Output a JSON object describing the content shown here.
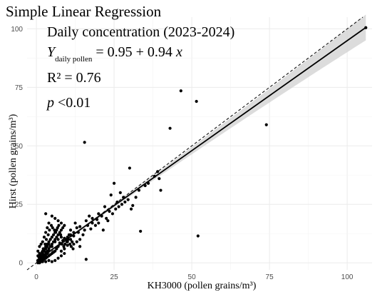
{
  "chart_data": {
    "type": "scatter",
    "title": "Simple Linear Regression",
    "subtitle": "Daily concentration (2023-2024)",
    "annotations": {
      "equation_y": "Y",
      "equation_sub": "daily pollen",
      "equation_rhs": " = 0.95 + 0.94 ",
      "equation_x": "x",
      "r2": "R² = 0.76",
      "p_symbol": "p",
      "p_value": " <0.01"
    },
    "xlabel": "KH3000 (pollen grains/m³)",
    "ylabel": "Hirst (pollen grains/m³)",
    "xlim": [
      -3,
      108
    ],
    "ylim": [
      -3,
      105
    ],
    "x_ticks": [
      0,
      25,
      50,
      75,
      100
    ],
    "y_ticks": [
      0,
      25,
      50,
      75,
      100
    ],
    "grid": true,
    "regression": {
      "intercept": 0.95,
      "slope": 0.94,
      "x_range": [
        0,
        106
      ],
      "ci_halfwidth_at_mean": 0.6,
      "ci_halfwidth_at_max": 5.5,
      "x_mean": 6
    },
    "reference_line": {
      "type": "identity",
      "style": "dashed"
    },
    "points": [
      [
        106,
        100.5
      ],
      [
        46.5,
        73.5
      ],
      [
        51.5,
        69
      ],
      [
        74,
        59
      ],
      [
        43,
        57.5
      ],
      [
        15.5,
        51.5
      ],
      [
        52,
        11.5
      ],
      [
        33.5,
        13.5
      ],
      [
        16,
        1.5
      ],
      [
        30,
        40.5
      ],
      [
        39,
        39
      ],
      [
        39.5,
        36
      ],
      [
        40,
        31
      ],
      [
        36,
        34
      ],
      [
        31,
        24.5
      ],
      [
        30.5,
        23
      ],
      [
        26,
        26
      ],
      [
        25,
        34
      ],
      [
        22,
        24
      ],
      [
        20,
        21
      ],
      [
        18,
        19
      ],
      [
        17,
        20
      ],
      [
        16,
        18
      ],
      [
        14,
        15.5
      ],
      [
        13.5,
        13
      ],
      [
        12,
        11.5
      ],
      [
        11.5,
        9
      ],
      [
        10,
        7.5
      ],
      [
        9,
        6
      ],
      [
        8,
        5
      ],
      [
        20,
        17
      ],
      [
        21.5,
        14
      ],
      [
        23,
        18
      ],
      [
        19,
        16
      ],
      [
        17.5,
        14.5
      ],
      [
        15,
        12
      ],
      [
        14,
        10
      ],
      [
        12.5,
        17
      ],
      [
        11,
        14
      ],
      [
        10.5,
        12
      ],
      [
        9.5,
        10
      ],
      [
        8.5,
        9.5
      ],
      [
        7.5,
        8.5
      ],
      [
        7,
        7
      ],
      [
        6.5,
        6
      ],
      [
        6,
        5
      ],
      [
        5.5,
        4.5
      ],
      [
        5,
        4
      ],
      [
        4.5,
        3.5
      ],
      [
        4,
        3
      ],
      [
        3.5,
        2.5
      ],
      [
        3,
        2
      ],
      [
        2.5,
        1.5
      ],
      [
        2,
        1
      ],
      [
        1.5,
        0.5
      ],
      [
        1,
        0
      ],
      [
        0.5,
        0
      ],
      [
        0.5,
        1
      ],
      [
        1,
        1.5
      ],
      [
        1.5,
        2
      ],
      [
        2,
        3
      ],
      [
        2.5,
        3.5
      ],
      [
        3,
        4.5
      ],
      [
        3.5,
        5
      ],
      [
        4,
        6
      ],
      [
        4.5,
        7
      ],
      [
        5,
        8
      ],
      [
        5.5,
        9
      ],
      [
        6,
        10
      ],
      [
        6.5,
        11
      ],
      [
        7,
        12
      ],
      [
        7.5,
        13
      ],
      [
        8,
        14
      ],
      [
        8.5,
        15
      ],
      [
        9,
        16
      ],
      [
        3,
        21
      ],
      [
        5,
        20
      ],
      [
        6,
        19
      ],
      [
        7,
        18
      ],
      [
        8,
        17
      ],
      [
        2,
        9
      ],
      [
        2.5,
        11
      ],
      [
        3,
        13
      ],
      [
        3.5,
        15
      ],
      [
        4,
        17
      ],
      [
        1,
        7
      ],
      [
        1.5,
        8
      ],
      [
        0.5,
        5
      ],
      [
        0.5,
        3
      ],
      [
        1,
        4
      ],
      [
        2,
        5
      ],
      [
        2.5,
        6
      ],
      [
        3,
        7
      ],
      [
        3.5,
        8
      ],
      [
        4,
        9
      ],
      [
        4.5,
        10
      ],
      [
        5,
        11
      ],
      [
        5.5,
        12
      ],
      [
        6,
        13
      ],
      [
        6.5,
        14
      ],
      [
        10,
        9
      ],
      [
        11,
        10
      ],
      [
        12,
        8
      ],
      [
        13,
        9
      ],
      [
        14,
        7
      ],
      [
        9,
        4
      ],
      [
        8,
        3
      ],
      [
        7,
        2
      ],
      [
        6,
        1
      ],
      [
        5,
        0.5
      ],
      [
        4,
        1
      ],
      [
        3,
        0.5
      ],
      [
        2,
        0.5
      ],
      [
        1,
        2
      ],
      [
        1.5,
        3
      ],
      [
        2,
        4
      ],
      [
        2.5,
        5
      ],
      [
        3,
        6
      ],
      [
        3.5,
        7
      ],
      [
        4,
        8
      ],
      [
        24,
        29
      ],
      [
        27,
        30
      ],
      [
        28,
        28
      ],
      [
        26.5,
        24
      ],
      [
        23.5,
        22
      ],
      [
        21,
        20
      ],
      [
        19.5,
        18.5
      ],
      [
        18,
        17
      ],
      [
        16.5,
        16
      ],
      [
        15.5,
        14
      ],
      [
        38,
        37
      ],
      [
        35,
        33
      ],
      [
        33,
        31
      ],
      [
        32,
        28
      ],
      [
        29.5,
        27
      ],
      [
        28.5,
        26
      ],
      [
        27.5,
        25
      ],
      [
        25.5,
        23
      ],
      [
        24.5,
        21
      ],
      [
        22.5,
        19
      ],
      [
        13,
        15
      ],
      [
        12,
        13
      ],
      [
        11,
        12
      ],
      [
        10,
        11
      ],
      [
        9,
        10.5
      ],
      [
        8,
        11
      ],
      [
        7,
        10
      ],
      [
        6,
        9
      ],
      [
        5,
        7
      ],
      [
        4,
        5
      ],
      [
        3.5,
        4
      ],
      [
        3,
        3
      ],
      [
        2.5,
        2.5
      ],
      [
        2,
        2
      ],
      [
        1.5,
        1
      ],
      [
        1,
        1
      ],
      [
        0.5,
        0.5
      ],
      [
        0.8,
        2.5
      ],
      [
        1.2,
        3.5
      ],
      [
        1.8,
        4.5
      ],
      [
        2.2,
        6
      ],
      [
        2.8,
        8
      ],
      [
        3.2,
        10
      ],
      [
        3.8,
        12
      ],
      [
        4.2,
        14
      ],
      [
        4.8,
        16
      ],
      [
        5.2,
        15
      ],
      [
        5.8,
        14
      ],
      [
        6.2,
        13
      ],
      [
        6.8,
        15
      ],
      [
        7.2,
        16
      ],
      [
        7.8,
        12
      ],
      [
        8.2,
        8
      ],
      [
        8.8,
        7
      ],
      [
        9.2,
        8
      ],
      [
        9.8,
        9
      ],
      [
        10.2,
        10
      ],
      [
        10.8,
        8
      ],
      [
        11.2,
        7
      ],
      [
        11.8,
        6
      ]
    ]
  }
}
